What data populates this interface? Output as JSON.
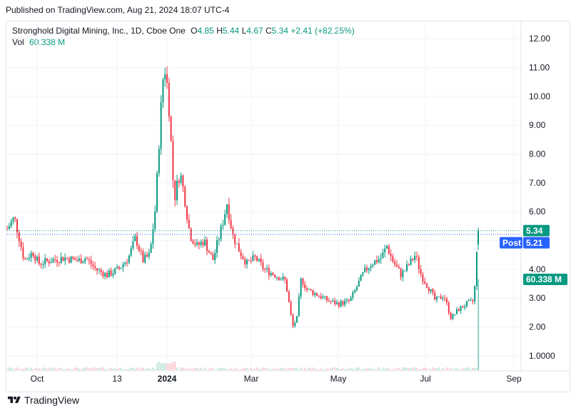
{
  "header": {
    "published": "Published on TradingView.com, Aug 21, 2024 18:07 UTC-4"
  },
  "legend": {
    "symbol": "Stronghold Digital Mining, Inc., 1D, Cboe One",
    "o_label": "O",
    "o_value": "4.85",
    "h_label": "H",
    "h_value": "5.44",
    "l_label": "L",
    "l_value": "4.67",
    "c_label": "C",
    "c_value": "5.34",
    "change": "+2.41 (+82.25%)",
    "vol_label": "Vol",
    "vol_value": "60.338 M"
  },
  "badges": {
    "last_price": "5.34",
    "post_label": "Post",
    "post_price": "5.21",
    "volume": "60.338 M"
  },
  "footer": {
    "brand": "TradingView"
  },
  "colors": {
    "up": "#089981",
    "down": "#f23645",
    "post": "#2962ff",
    "grid": "#f0f3fa",
    "text": "#131722"
  },
  "chart_data": {
    "type": "candlestick",
    "title": "Stronghold Digital Mining, Inc., 1D, Cboe One",
    "price_axis": {
      "ticks": [
        "12.00",
        "11.00",
        "10.00",
        "9.00",
        "8.00",
        "7.00",
        "6.00",
        "5.00",
        "4.00",
        "3.00",
        "2.00",
        "1.0000"
      ],
      "range": [
        0.5,
        12.6
      ]
    },
    "x_axis": {
      "labels": [
        {
          "text": "Oct",
          "bold": false,
          "day": 21
        },
        {
          "text": "13",
          "bold": false,
          "day": 77
        },
        {
          "text": "2024",
          "bold": true,
          "day": 112
        },
        {
          "text": "Mar",
          "bold": false,
          "day": 171
        },
        {
          "text": "May",
          "bold": false,
          "day": 232
        },
        {
          "text": "Jul",
          "bold": false,
          "day": 293
        },
        {
          "text": "Sep",
          "bold": false,
          "day": 355
        }
      ],
      "range": [
        0,
        360
      ]
    },
    "price_path": [
      [
        0,
        5.4
      ],
      [
        5,
        5.8
      ],
      [
        8,
        5.2
      ],
      [
        12,
        4.3
      ],
      [
        18,
        4.6
      ],
      [
        22,
        4.2
      ],
      [
        30,
        4.3
      ],
      [
        40,
        4.4
      ],
      [
        50,
        4.3
      ],
      [
        55,
        4.4
      ],
      [
        62,
        4.0
      ],
      [
        70,
        3.8
      ],
      [
        78,
        4.0
      ],
      [
        85,
        4.4
      ],
      [
        90,
        5.1
      ],
      [
        95,
        4.3
      ],
      [
        100,
        4.5
      ],
      [
        104,
        6.2
      ],
      [
        107,
        9.0
      ],
      [
        110,
        11.2
      ],
      [
        113,
        10.0
      ],
      [
        117,
        6.4
      ],
      [
        121,
        7.4
      ],
      [
        124,
        6.6
      ],
      [
        128,
        5.2
      ],
      [
        133,
        4.8
      ],
      [
        138,
        5.0
      ],
      [
        144,
        4.3
      ],
      [
        150,
        5.4
      ],
      [
        154,
        6.3
      ],
      [
        158,
        5.2
      ],
      [
        163,
        4.6
      ],
      [
        168,
        4.2
      ],
      [
        174,
        4.4
      ],
      [
        180,
        4.0
      ],
      [
        188,
        3.8
      ],
      [
        195,
        3.6
      ],
      [
        200,
        2.0
      ],
      [
        203,
        2.3
      ],
      [
        206,
        3.7
      ],
      [
        210,
        3.3
      ],
      [
        218,
        3.1
      ],
      [
        225,
        2.9
      ],
      [
        232,
        2.8
      ],
      [
        240,
        2.9
      ],
      [
        245,
        3.4
      ],
      [
        250,
        3.9
      ],
      [
        255,
        4.2
      ],
      [
        262,
        4.4
      ],
      [
        266,
        4.8
      ],
      [
        270,
        4.3
      ],
      [
        276,
        3.8
      ],
      [
        282,
        4.2
      ],
      [
        286,
        4.5
      ],
      [
        290,
        3.8
      ],
      [
        296,
        3.3
      ],
      [
        300,
        2.9
      ],
      [
        306,
        3.1
      ],
      [
        311,
        2.3
      ],
      [
        316,
        2.6
      ],
      [
        322,
        2.8
      ],
      [
        327,
        2.9
      ],
      [
        330,
        5.34
      ]
    ],
    "volume": {
      "last_bar": 60.338,
      "unit": "M"
    },
    "current_price": 5.34,
    "post_market_price": 5.21
  }
}
